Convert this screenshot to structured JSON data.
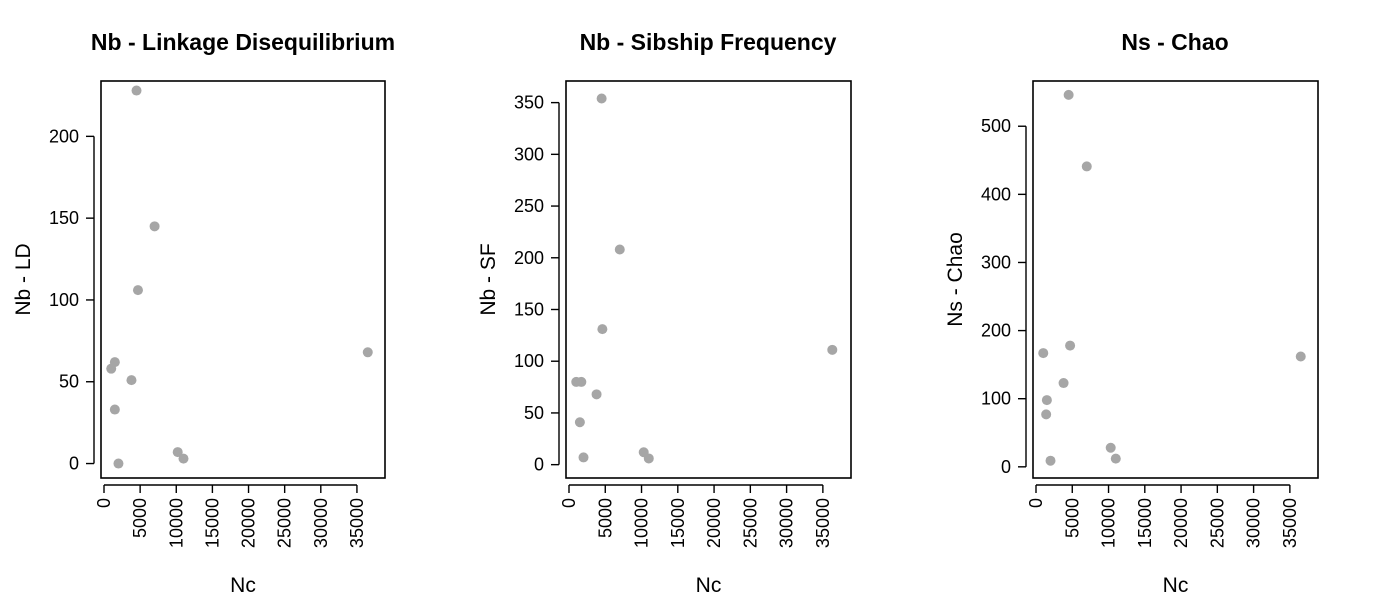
{
  "chart_data": [
    {
      "type": "scatter",
      "title": "Nb - Linkage Disequilibrium",
      "xlabel": "Nc",
      "ylabel": "Nb - LD",
      "xlim": [
        0,
        37500
      ],
      "ylim": [
        -7,
        232
      ],
      "xticks": [
        0,
        5000,
        10000,
        15000,
        20000,
        25000,
        30000,
        35000
      ],
      "xtick_labels": [
        "0",
        "5000",
        "10000",
        "15000",
        "20000",
        "25000",
        "30000",
        "35000"
      ],
      "yticks": [
        0,
        50,
        100,
        150,
        200
      ],
      "ytick_labels": [
        "0",
        "50",
        "100",
        "150",
        "200"
      ],
      "point_color": "#a6a6a6",
      "grid": false,
      "points": [
        {
          "x": 4500,
          "y": 228
        },
        {
          "x": 7000,
          "y": 145
        },
        {
          "x": 4700,
          "y": 106
        },
        {
          "x": 36500,
          "y": 68
        },
        {
          "x": 1500,
          "y": 62
        },
        {
          "x": 1000,
          "y": 58
        },
        {
          "x": 3800,
          "y": 51
        },
        {
          "x": 1500,
          "y": 33
        },
        {
          "x": 10200,
          "y": 7
        },
        {
          "x": 11000,
          "y": 3
        },
        {
          "x": 2000,
          "y": 0
        }
      ]
    },
    {
      "type": "scatter",
      "title": "Nb - Sibship Frequency",
      "xlabel": "Nc",
      "ylabel": "Nb - SF",
      "xlim": [
        0,
        37500
      ],
      "ylim": [
        -10,
        368
      ],
      "xticks": [
        0,
        5000,
        10000,
        15000,
        20000,
        25000,
        30000,
        35000
      ],
      "xtick_labels": [
        "0",
        "5000",
        "10000",
        "15000",
        "20000",
        "25000",
        "30000",
        "35000"
      ],
      "yticks": [
        0,
        50,
        100,
        150,
        200,
        250,
        300,
        350
      ],
      "ytick_labels": [
        "0",
        "50",
        "100",
        "150",
        "200",
        "250",
        "300",
        "350"
      ],
      "point_color": "#a6a6a6",
      "grid": false,
      "points": [
        {
          "x": 4500,
          "y": 354
        },
        {
          "x": 7000,
          "y": 208
        },
        {
          "x": 4600,
          "y": 131
        },
        {
          "x": 36300,
          "y": 111
        },
        {
          "x": 1000,
          "y": 80
        },
        {
          "x": 1700,
          "y": 80
        },
        {
          "x": 3800,
          "y": 68
        },
        {
          "x": 1500,
          "y": 41
        },
        {
          "x": 10300,
          "y": 12
        },
        {
          "x": 11000,
          "y": 6
        },
        {
          "x": 2000,
          "y": 7
        }
      ]
    },
    {
      "type": "scatter",
      "title": "Ns - Chao",
      "xlabel": "Nc",
      "ylabel": "Ns - Chao",
      "xlim": [
        0,
        37500
      ],
      "ylim": [
        -12,
        562
      ],
      "xticks": [
        0,
        5000,
        10000,
        15000,
        20000,
        25000,
        30000,
        35000
      ],
      "xtick_labels": [
        "0",
        "5000",
        "10000",
        "15000",
        "20000",
        "25000",
        "30000",
        "35000"
      ],
      "yticks": [
        0,
        100,
        200,
        300,
        400,
        500
      ],
      "ytick_labels": [
        "0",
        "100",
        "200",
        "300",
        "400",
        "500"
      ],
      "point_color": "#a6a6a6",
      "grid": false,
      "points": [
        {
          "x": 4500,
          "y": 546
        },
        {
          "x": 7000,
          "y": 441
        },
        {
          "x": 4700,
          "y": 178
        },
        {
          "x": 1000,
          "y": 167
        },
        {
          "x": 36500,
          "y": 162
        },
        {
          "x": 3800,
          "y": 123
        },
        {
          "x": 1500,
          "y": 98
        },
        {
          "x": 1400,
          "y": 77
        },
        {
          "x": 10300,
          "y": 28
        },
        {
          "x": 11000,
          "y": 12
        },
        {
          "x": 2000,
          "y": 9
        }
      ]
    }
  ]
}
